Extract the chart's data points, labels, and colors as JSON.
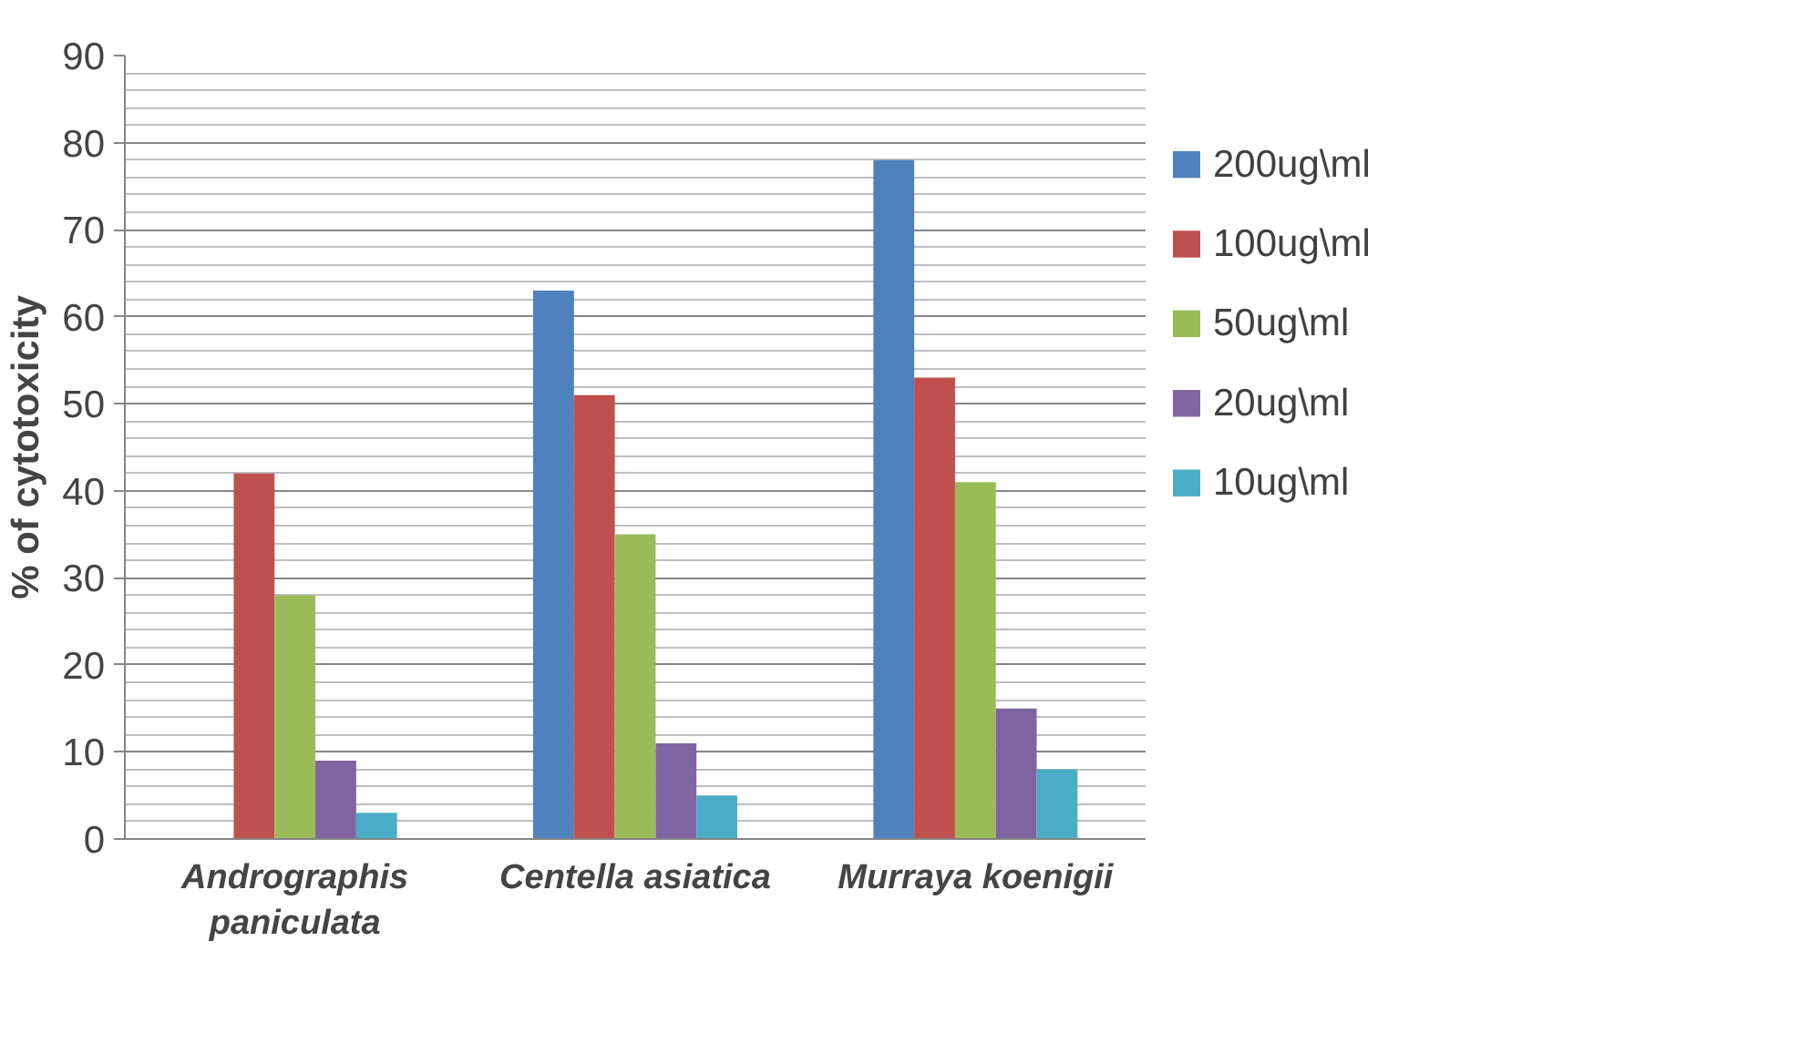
{
  "chart_data": {
    "type": "bar",
    "ylabel": "% of cytotoxicity",
    "categories": [
      "Andrographis paniculata",
      "Centella asiatica",
      "Murraya koenigii"
    ],
    "series": [
      {
        "name": "200ug\\ml",
        "color": "#4f81bd",
        "values": [
          null,
          63,
          78
        ]
      },
      {
        "name": "100ug\\ml",
        "color": "#c0504d",
        "values": [
          42,
          51,
          53
        ]
      },
      {
        "name": "50ug\\ml",
        "color": "#9bbb59",
        "values": [
          28,
          35,
          41
        ]
      },
      {
        "name": "20ug\\ml",
        "color": "#8064a2",
        "values": [
          9,
          11,
          15
        ]
      },
      {
        "name": "10ug\\ml",
        "color": "#4bacc6",
        "values": [
          3,
          5,
          8
        ]
      }
    ],
    "ylim": [
      0,
      90
    ],
    "yticks": [
      0,
      10,
      20,
      30,
      40,
      50,
      60,
      70,
      80,
      90
    ],
    "grid": "y",
    "legend": "right"
  }
}
